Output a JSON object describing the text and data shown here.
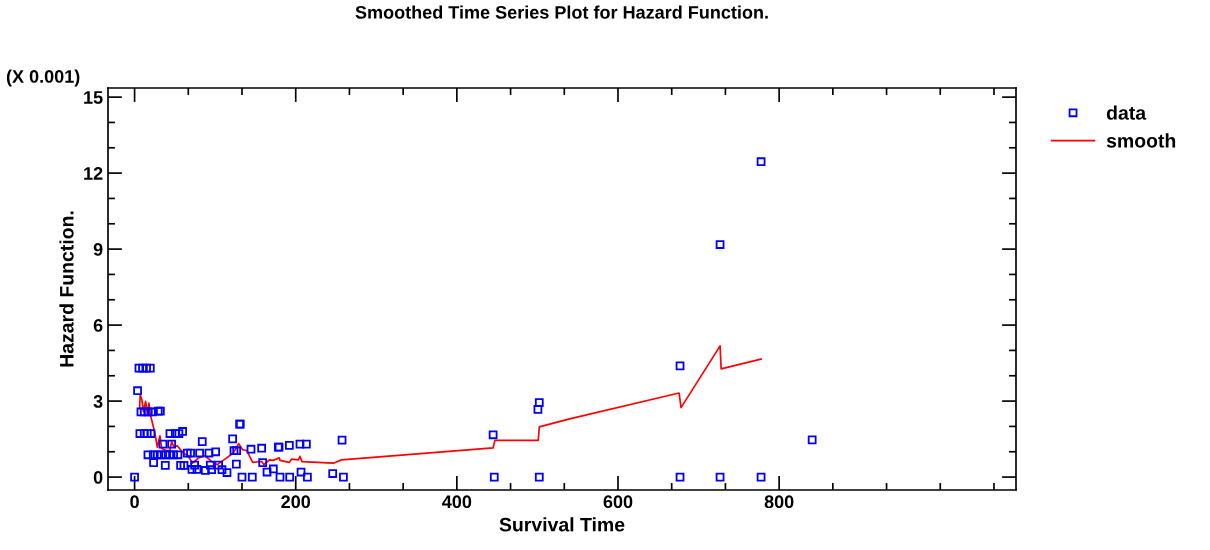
{
  "chart_data": {
    "type": "scatter",
    "title": "Smoothed Time Series Plot for Hazard Function.",
    "xlabel": "Survival Time",
    "ylabel": "Hazard Function.",
    "annotations": [
      "(X 0.001)"
    ],
    "xlim": [
      -33,
      1094
    ],
    "xticks": [
      0,
      200,
      400,
      600,
      800
    ],
    "ylim": [
      -0.51,
      15.36
    ],
    "yticks": [
      0,
      3,
      6,
      9,
      12,
      15
    ],
    "grid": false,
    "legend": "top right",
    "series": [
      {
        "name": "data",
        "marker": "square",
        "color": "#0000ff",
        "x": [
          0,
          3.7,
          5.4,
          9.9,
          14.9,
          19.5,
          7.9,
          12,
          17,
          22,
          29.4,
          32,
          6.6,
          12,
          15.7,
          20.3,
          43.9,
          50.5,
          55,
          59.6,
          35.2,
          46,
          84,
          16.6,
          23.2,
          28.2,
          33.1,
          38.5,
          43.5,
          48.4,
          53.8,
          23.6,
          38.1,
          57.1,
          61.3,
          65.4,
          69.5,
          71.2,
          77.4,
          74.5,
          80.7,
          87.8,
          92.3,
          94,
          95.6,
          100.6,
          104.3,
          108.5,
          114.7,
          121.7,
          123.4,
          126.7,
          130.4,
          131.2,
          126.3,
          133.3,
          144.5,
          146.1,
          157.7,
          159,
          164.4,
          172.2,
          178.4,
          179.3,
          180.5,
          192.1,
          192.5,
          205.3,
          213.2,
          206.6,
          214.5,
          245.9,
          257.5,
          259.2,
          446.4,
          445,
          502.3,
          500.6,
          502.3,
          677,
          677,
          726.7,
          726.7,
          777.6,
          777.6,
          841
        ],
        "values": [
          0,
          3.41,
          4.3,
          4.3,
          4.3,
          4.3,
          2.57,
          2.57,
          2.57,
          2.57,
          2.6,
          2.6,
          1.72,
          1.72,
          1.72,
          1.72,
          1.72,
          1.72,
          1.72,
          1.8,
          1.3,
          1.3,
          1.4,
          0.88,
          0.88,
          0.88,
          0.88,
          0.88,
          0.88,
          0.88,
          0.88,
          0.57,
          0.46,
          0.46,
          0.46,
          0.95,
          0.95,
          0.3,
          0.3,
          0.47,
          0.95,
          0.26,
          0.95,
          0.47,
          0.29,
          1.0,
          0.47,
          0.29,
          0.18,
          1.51,
          1.04,
          1.04,
          2.09,
          2.09,
          0.51,
          0,
          1.1,
          0,
          1.14,
          0.57,
          0.2,
          0.32,
          1.18,
          1.18,
          0,
          1.25,
          0,
          1.3,
          1.3,
          0.2,
          0,
          0.14,
          1.46,
          0,
          0,
          1.67,
          2.94,
          2.67,
          0,
          4.39,
          0,
          9.18,
          0,
          12.45,
          0,
          1.47
        ]
      },
      {
        "name": "smooth",
        "type": "line",
        "marker": "none",
        "line_style": "solid",
        "color": "#ff0000",
        "x": [
          6.2,
          7,
          9.1,
          10.8,
          13.7,
          16.1,
          17.8,
          19.9,
          24.8,
          28.2,
          31.5,
          33.5,
          38.9,
          43.9,
          46,
          48.9,
          53,
          56.3,
          61.3,
          65.4,
          72,
          79.1,
          87.4,
          95.6,
          102.7,
          110.1,
          122.5,
          129.2,
          134.1,
          139.1,
          146.6,
          157.7,
          160.6,
          167.3,
          172.2,
          179.7,
          180.5,
          192.1,
          195,
          203.3,
          205.3,
          207.8,
          246.7,
          256.8,
          445,
          447.2,
          501,
          502.3,
          540,
          675.8,
          678.3,
          726.7,
          728,
          777.6
        ],
        "values": [
          2.72,
          3.25,
          3.05,
          2.59,
          2.99,
          2.46,
          2.92,
          2.42,
          1.8,
          1.18,
          1.63,
          1.14,
          1.05,
          1.05,
          1.41,
          1.18,
          1.24,
          1.11,
          0.92,
          0.88,
          0.55,
          0.75,
          0.84,
          0.62,
          0.49,
          0.66,
          0.95,
          1.32,
          1.08,
          1.05,
          0.58,
          0.62,
          0.49,
          0.68,
          0.66,
          0.76,
          0.66,
          0.58,
          0.71,
          0.68,
          0.82,
          0.61,
          0.55,
          0.68,
          1.15,
          1.45,
          1.45,
          1.98,
          2.3,
          3.32,
          2.74,
          5.18,
          4.27,
          4.66
        ]
      }
    ]
  }
}
